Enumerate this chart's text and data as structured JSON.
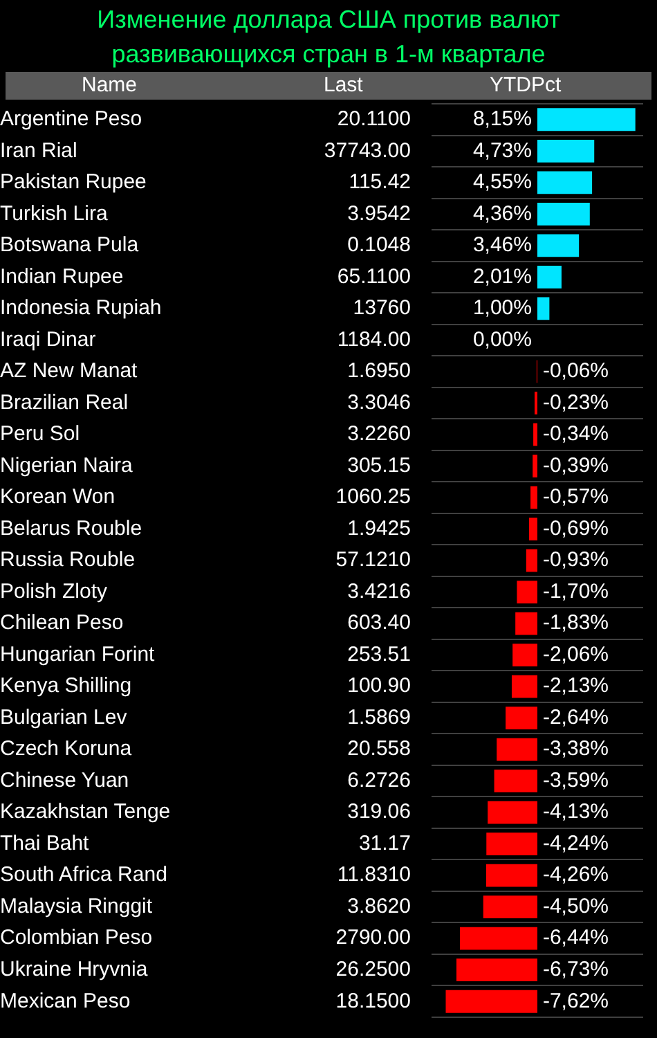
{
  "chart_data": {
    "type": "bar",
    "orientation": "horizontal",
    "title": "Изменение доллара США против валют развивающихся стран в 1-м квартале",
    "ylabel": "Name",
    "xlabel": "YTDPct",
    "categories": [
      "Argentine Peso",
      "Iran Rial",
      "Pakistan Rupee",
      "Turkish Lira",
      "Botswana Pula",
      "Indian Rupee",
      "Indonesia Rupiah",
      "Iraqi Dinar",
      "AZ New Manat",
      "Brazilian Real",
      "Peru Sol",
      "Nigerian Naira",
      "Korean Won",
      "Belarus Rouble",
      "Russia Rouble",
      "Polish Zloty",
      "Chilean Peso",
      "Hungarian Forint",
      "Kenya Shilling",
      "Bulgarian Lev",
      "Czech Koruna",
      "Chinese Yuan",
      "Kazakhstan Tenge",
      "Thai Baht",
      "South Africa Rand",
      "Malaysia Ringgit",
      "Colombian Peso",
      "Ukraine Hryvnia",
      "Mexican Peso"
    ],
    "values": [
      8.15,
      4.73,
      4.55,
      4.36,
      3.46,
      2.01,
      1.0,
      0.0,
      -0.06,
      -0.23,
      -0.34,
      -0.39,
      -0.57,
      -0.69,
      -0.93,
      -1.7,
      -1.83,
      -2.06,
      -2.13,
      -2.64,
      -3.38,
      -3.59,
      -4.13,
      -4.24,
      -4.26,
      -4.5,
      -6.44,
      -6.73,
      -7.62
    ],
    "value_labels": [
      "8,15%",
      "4,73%",
      "4,55%",
      "4,36%",
      "3,46%",
      "2,01%",
      "1,00%",
      "0,00%",
      "-0,06%",
      "-0,23%",
      "-0,34%",
      "-0,39%",
      "-0,57%",
      "-0,69%",
      "-0,93%",
      "-1,70%",
      "-1,83%",
      "-2,06%",
      "-2,13%",
      "-2,64%",
      "-3,38%",
      "-3,59%",
      "-4,13%",
      "-4,24%",
      "-4,26%",
      "-4,50%",
      "-6,44%",
      "-6,73%",
      "-7,62%"
    ],
    "colors": [
      "#00e5ff",
      "#00e5ff",
      "#00e5ff",
      "#00e5ff",
      "#00e5ff",
      "#00e5ff",
      "#00e5ff",
      "#00e5ff",
      "#ff0000",
      "#ff0000",
      "#ff0000",
      "#ff0000",
      "#ff0000",
      "#ff0000",
      "#ff0000",
      "#ff0000",
      "#ff0000",
      "#ff0000",
      "#ff0000",
      "#ff0000",
      "#ff0000",
      "#ff0000",
      "#ff0000",
      "#ff0000",
      "#ff0000",
      "#ff0000",
      "#ff0000",
      "#ff0000",
      "#ff0000"
    ],
    "xlim": [
      -8.8,
      8.8
    ],
    "tick_labels": "y",
    "grid": "y",
    "annotations": [
      "Last",
      "20.1100",
      "37743.00",
      "115.42",
      "3.9542",
      "0.1048",
      "65.1100",
      "13760",
      "1184.00",
      "1.6950",
      "3.3046",
      "3.2260",
      "305.15",
      "1060.25",
      "1.9425",
      "57.1210",
      "3.4216",
      "603.40",
      "253.51",
      "100.90",
      "1.5869",
      "20.558",
      "6.2726",
      "319.06",
      "31.17",
      "11.8310",
      "3.8620",
      "2790.00",
      "26.2500",
      "18.1500"
    ]
  }
}
